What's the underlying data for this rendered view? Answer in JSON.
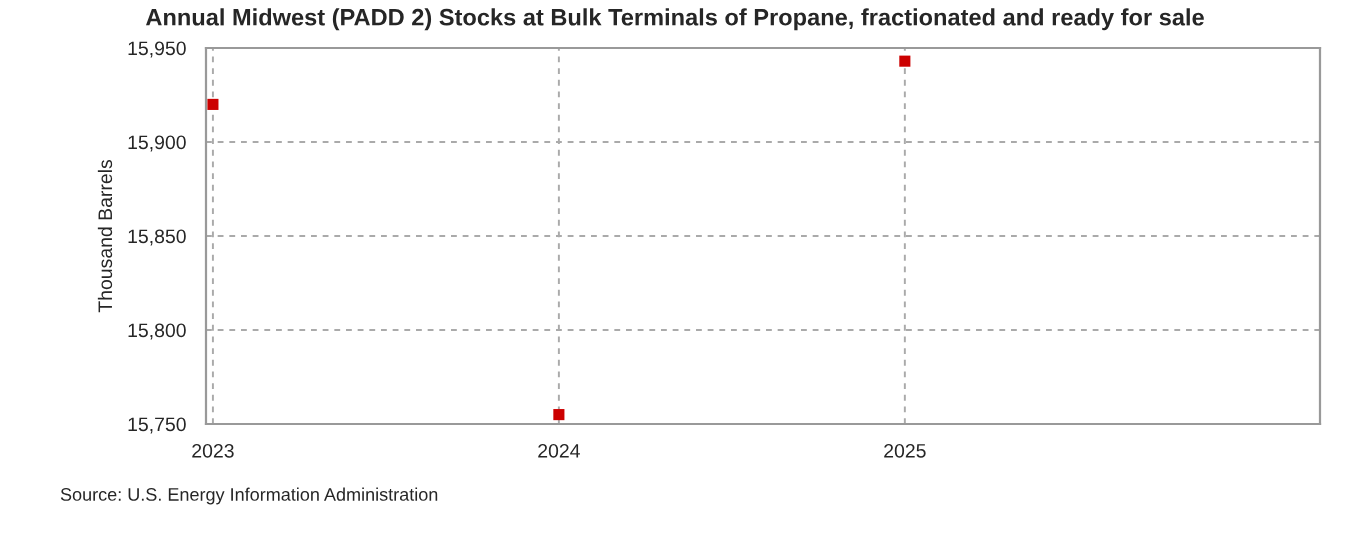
{
  "chart_data": {
    "type": "scatter",
    "title": "Annual Midwest (PADD 2) Stocks at Bulk Terminals of Propane, fractionated and ready for sale",
    "ylabel": "Thousand Barrels",
    "x": [
      2023,
      2024,
      2025
    ],
    "series": [
      {
        "color": "#cc0000",
        "values": [
          15920,
          15755,
          15943
        ]
      }
    ],
    "xlim": [
      2022.98,
      2026.2
    ],
    "xticks": [
      2023,
      2024,
      2025
    ],
    "ylim": [
      15750,
      15950
    ],
    "yticks": [
      {
        "value": 15750,
        "label": "15,750"
      },
      {
        "value": 15800,
        "label": "15,800"
      },
      {
        "value": 15850,
        "label": "15,850"
      },
      {
        "value": 15900,
        "label": "15,900"
      },
      {
        "value": 15950,
        "label": "15,950"
      }
    ],
    "grid": true,
    "marker": "square",
    "annotations": [
      "Source: U.S. Energy Information Administration"
    ]
  }
}
